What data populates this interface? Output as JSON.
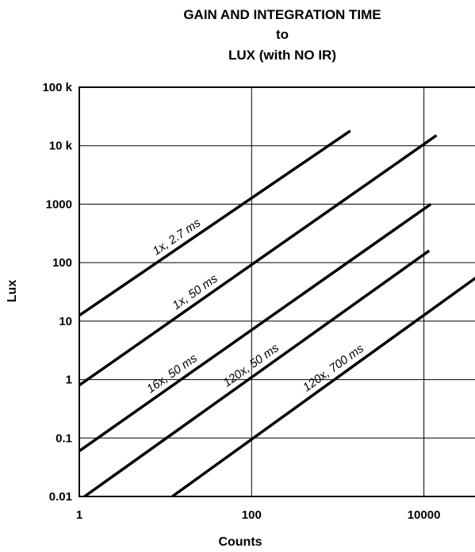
{
  "chart_data": {
    "type": "line",
    "title_lines": [
      "GAIN AND INTEGRATION TIME",
      "to",
      "LUX (with NO IR)"
    ],
    "xlabel": "Counts",
    "ylabel": "Lux",
    "x_scale": "log",
    "y_scale": "log",
    "xlim": [
      1,
      40000
    ],
    "ylim": [
      0.01,
      100000
    ],
    "x_ticks": [
      {
        "value": 1,
        "label": "1"
      },
      {
        "value": 100,
        "label": "100"
      },
      {
        "value": 10000,
        "label": "10000"
      }
    ],
    "y_ticks": [
      {
        "value": 0.01,
        "label": "0.01"
      },
      {
        "value": 0.1,
        "label": "0.1"
      },
      {
        "value": 1,
        "label": "1"
      },
      {
        "value": 10,
        "label": "10"
      },
      {
        "value": 100,
        "label": "100"
      },
      {
        "value": 1000,
        "label": "1000"
      },
      {
        "value": 10000,
        "label": "10 k"
      },
      {
        "value": 100000,
        "label": "100 k"
      }
    ],
    "grid": true,
    "series": [
      {
        "name": "1x, 2.7 ms",
        "x": [
          1,
          1400
        ],
        "y": [
          12.5,
          18000
        ]
      },
      {
        "name": "1x, 50 ms",
        "x": [
          1,
          14000
        ],
        "y": [
          0.8,
          15000
        ]
      },
      {
        "name": "16x, 50 ms",
        "x": [
          1,
          12000
        ],
        "y": [
          0.06,
          1000
        ]
      },
      {
        "name": "120x, 50 ms",
        "x": [
          1.15,
          11500
        ],
        "y": [
          0.01,
          160
        ]
      },
      {
        "name": "120x, 700 ms",
        "x": [
          12,
          40000
        ],
        "y": [
          0.01,
          55
        ]
      }
    ]
  }
}
